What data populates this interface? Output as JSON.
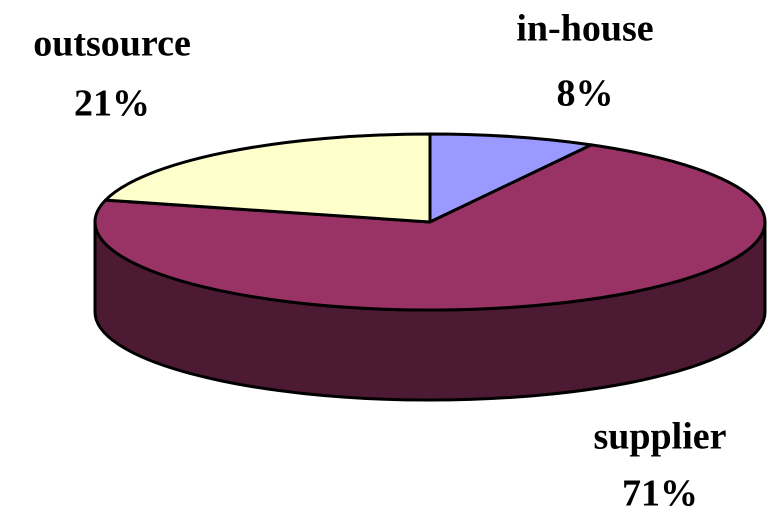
{
  "chart_data": {
    "type": "pie",
    "categories": [
      "in-house",
      "supplier",
      "outsource"
    ],
    "values": [
      8,
      71,
      21
    ],
    "value_labels": [
      "8%",
      "71%",
      "21%"
    ],
    "colors": [
      "#9999ff",
      "#993366",
      "#ffffcc"
    ]
  }
}
